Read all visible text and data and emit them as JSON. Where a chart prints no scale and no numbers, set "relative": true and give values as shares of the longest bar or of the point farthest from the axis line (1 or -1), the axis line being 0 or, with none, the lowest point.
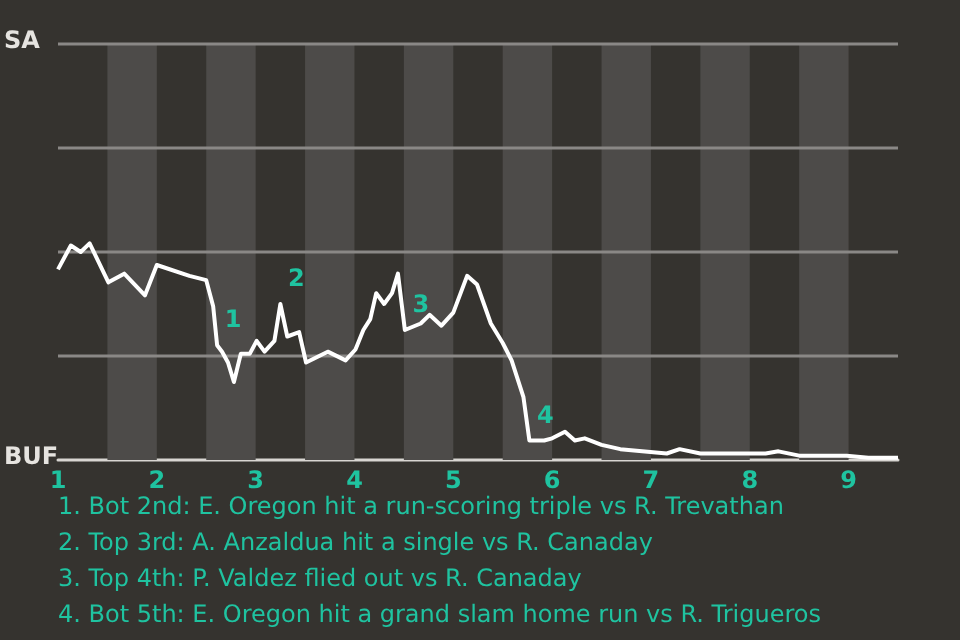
{
  "chart_data": {
    "type": "line",
    "relative": true,
    "x": [
      1,
      1.13,
      1.23,
      1.32,
      1.51,
      1.67,
      1.88,
      2,
      2.33,
      2.5,
      2.57,
      2.61,
      2.66,
      2.72,
      2.78,
      2.85,
      2.94,
      3.01,
      3.09,
      3.19,
      3.25,
      3.32,
      3.44,
      3.51,
      3.73,
      3.91,
      4.01,
      4.09,
      4.16,
      4.22,
      4.3,
      4.38,
      4.44,
      4.51,
      4.67,
      4.76,
      4.88,
      5,
      5.14,
      5.24,
      5.38,
      5.5,
      5.59,
      5.71,
      5.77,
      5.92,
      6,
      6.13,
      6.23,
      6.33,
      6.5,
      6.69,
      7.16,
      7.29,
      7.5,
      7.9,
      8.16,
      8.29,
      8.5,
      8.98,
      9.2,
      9.5
    ],
    "series": [
      {
        "color": "#ffffff",
        "values": [
          0.88,
          0.99,
          0.96,
          1,
          0.82,
          0.86,
          0.76,
          0.9,
          0.85,
          0.83,
          0.71,
          0.53,
          0.5,
          0.45,
          0.36,
          0.49,
          0.49,
          0.55,
          0.5,
          0.55,
          0.72,
          0.57,
          0.59,
          0.45,
          0.5,
          0.46,
          0.51,
          0.6,
          0.65,
          0.77,
          0.72,
          0.77,
          0.86,
          0.6,
          0.63,
          0.67,
          0.62,
          0.68,
          0.85,
          0.81,
          0.63,
          0.54,
          0.46,
          0.29,
          0.09,
          0.09,
          0.1,
          0.13,
          0.09,
          0.1,
          0.07,
          0.05,
          0.03,
          0.05,
          0.03,
          0.03,
          0.03,
          0.04,
          0.02,
          0.02,
          0.01,
          0.01
        ]
      }
    ],
    "xlim": [
      1,
      9.5
    ],
    "xticks": [
      1,
      2,
      3,
      4,
      5,
      6,
      7,
      8,
      9
    ],
    "marker": "none",
    "bands": [
      {
        "axis": "x",
        "from": 1.5,
        "to": 2,
        "color": "#4d4b49"
      },
      {
        "axis": "x",
        "from": 2.5,
        "to": 3,
        "color": "#4d4b49"
      },
      {
        "axis": "x",
        "from": 3.5,
        "to": 4,
        "color": "#4d4b49"
      },
      {
        "axis": "x",
        "from": 4.5,
        "to": 5,
        "color": "#4d4b49"
      },
      {
        "axis": "x",
        "from": 5.5,
        "to": 6,
        "color": "#4d4b49"
      },
      {
        "axis": "x",
        "from": 6.5,
        "to": 7,
        "color": "#4d4b49"
      },
      {
        "axis": "x",
        "from": 7.5,
        "to": 8,
        "color": "#4d4b49"
      },
      {
        "axis": "x",
        "from": 8.5,
        "to": 9,
        "color": "#4d4b49"
      }
    ],
    "ref_lines": [
      {
        "axis": "y",
        "value": 0.48,
        "color": "#8a8886"
      },
      {
        "axis": "y",
        "value": 0.96,
        "color": "#8a8886"
      },
      {
        "axis": "y",
        "value": 1.44,
        "color": "#8a8886"
      },
      {
        "axis": "y",
        "value": 1.92,
        "color": "#8a8886"
      }
    ],
    "annotations": [
      {
        "text": "1",
        "x": 2.61,
        "y": 0.53
      },
      {
        "text": "2",
        "x": 3.25,
        "y": 0.72
      },
      {
        "text": "3",
        "x": 4.51,
        "y": 0.6
      },
      {
        "text": "4",
        "x": 5.77,
        "y": 0.09
      },
      "SA",
      "BUF",
      "1. Bot 2nd: E. Oregon hit a run-scoring triple vs R. Trevathan",
      "2. Top 3rd: A. Anzaldua hit a single vs R. Canaday",
      "3. Top 4th: P. Valdez flied out vs R. Canaday",
      "4. Bot 5th: E. Oregon hit a grand slam home run vs R. Trigueros"
    ]
  }
}
